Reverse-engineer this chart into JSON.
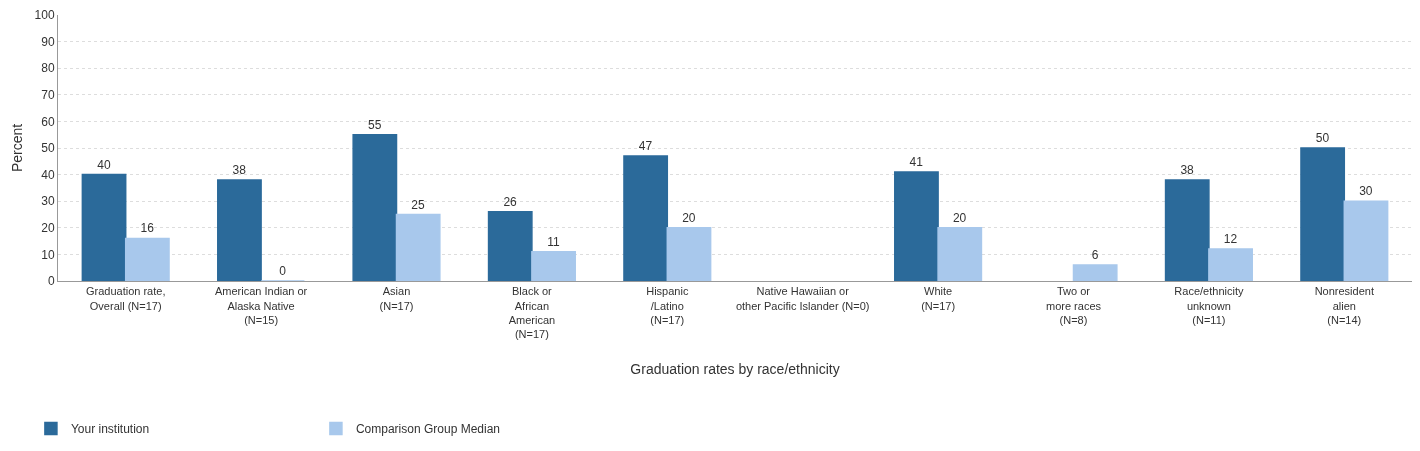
{
  "chart_data": {
    "type": "bar",
    "xlabel": "Graduation rates by race/ethnicity",
    "ylabel": "Percent",
    "categories": [
      "Graduation rate,\nOverall (N=17)",
      "American Indian or\nAlaska Native\n(N=15)",
      "Asian\n(N=17)",
      "Black or\nAfrican\nAmerican\n(N=17)",
      "Hispanic\n/Latino\n(N=17)",
      "Native Hawaiian or\nother Pacific Islander (N=0)",
      "White\n(N=17)",
      "Two or\nmore races\n(N=8)",
      "Race/ethnicity\nunknown\n(N=11)",
      "Nonresident\nalien\n(N=14)"
    ],
    "series": [
      {
        "name": "Your institution",
        "color": "#2b6a9a",
        "values": [
          40,
          38,
          55,
          26,
          47,
          null,
          41,
          null,
          38,
          50
        ]
      },
      {
        "name": "Comparison Group Median",
        "color": "#a8c8ec",
        "values": [
          16,
          0,
          25,
          11,
          20,
          null,
          20,
          6,
          12,
          30
        ]
      }
    ],
    "ylim": [
      0,
      100
    ],
    "yticks": [
      0,
      10,
      20,
      30,
      40,
      50,
      60,
      70,
      80,
      90,
      100
    ],
    "grid": "y",
    "legend": "bottom left",
    "data_labels": true
  }
}
